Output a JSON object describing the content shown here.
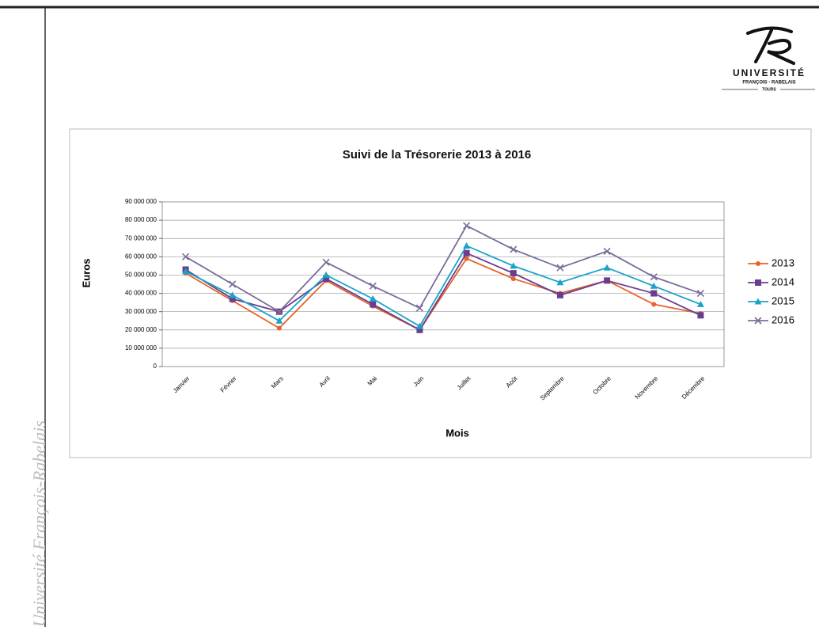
{
  "slide": {
    "logo_name": "UNIVERSITÉ",
    "logo_sub": "FRANÇOIS - RABELAIS",
    "logo_city": "TOURS",
    "side_text": "Université François-Rabelais"
  },
  "chart_data": {
    "type": "line",
    "title": "Suivi de la Trésorerie  2013  à 2016",
    "x_label": "Mois",
    "y_label": "Euros",
    "categories": [
      "Janvier",
      "Février",
      "Mars",
      "Avril",
      "Mai",
      "Juin",
      "Juillet",
      "Août",
      "Septembre",
      "Octobre",
      "Novembre",
      "Décembre"
    ],
    "series": [
      {
        "name": "2013",
        "color": "#e8622a",
        "marker": "circle",
        "values": [
          51000000,
          36000000,
          21000000,
          47000000,
          33000000,
          20000000,
          59000000,
          48000000,
          40000000,
          47000000,
          34000000,
          29000000
        ]
      },
      {
        "name": "2014",
        "color": "#6b3d8f",
        "marker": "square",
        "values": [
          53000000,
          37000000,
          30000000,
          48000000,
          34000000,
          20000000,
          62000000,
          51000000,
          39000000,
          47000000,
          40000000,
          28000000
        ]
      },
      {
        "name": "2015",
        "color": "#1aa3c8",
        "marker": "triangle",
        "values": [
          52000000,
          39000000,
          25000000,
          50000000,
          37000000,
          22000000,
          66000000,
          55000000,
          46000000,
          54000000,
          44000000,
          34000000
        ]
      },
      {
        "name": "2016",
        "color": "#7b6b9b",
        "marker": "cross",
        "values": [
          60000000,
          45000000,
          30000000,
          57000000,
          44000000,
          32000000,
          77000000,
          64000000,
          54000000,
          63000000,
          49000000,
          40000000
        ]
      }
    ],
    "ylim": [
      0,
      90000000
    ],
    "yticks": [
      0,
      {
        "value": 10000000,
        "label": "10 000 000"
      },
      {
        "value": 20000000,
        "label": "20 000 000"
      },
      {
        "value": 30000000,
        "label": "30 000 000"
      },
      {
        "value": 40000000,
        "label": "40 000 000"
      },
      {
        "value": 50000000,
        "label": "50 000 000"
      },
      {
        "value": 60000000,
        "label": "60 000 000"
      },
      {
        "value": 70000000,
        "label": "70 000 000"
      },
      {
        "value": 80000000,
        "label": "80 000 000"
      },
      {
        "value": 90000000,
        "label": "90 000 000"
      }
    ],
    "grid": true,
    "legend": "right"
  }
}
